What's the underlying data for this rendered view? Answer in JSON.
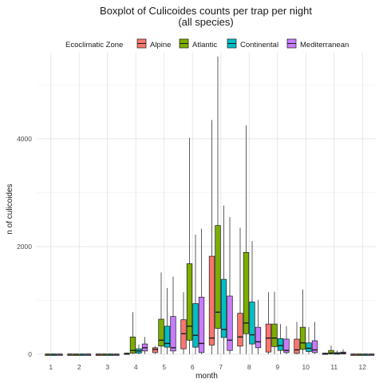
{
  "chart_data": {
    "type": "boxplot",
    "title": "Boxplot of Culicoides counts per trap per night",
    "subtitle": "(all species)",
    "xlabel": "month",
    "ylabel": "n of culicoides",
    "categories": [
      "1",
      "2",
      "3",
      "4",
      "5",
      "6",
      "7",
      "8",
      "9",
      "10",
      "11",
      "12"
    ],
    "y_ticks": [
      0,
      2000,
      4000
    ],
    "ylim": [
      -120,
      5600
    ],
    "grid": true,
    "legend": {
      "title": "Ecoclimatic Zone",
      "position": "top"
    },
    "series": [
      {
        "name": "Alpine",
        "color": "#F8766D",
        "boxes": [
          null,
          [
            0,
            0,
            0,
            0,
            0
          ],
          [
            0,
            0,
            0,
            0,
            0
          ],
          [
            0,
            0,
            5,
            20,
            30
          ],
          [
            0,
            30,
            90,
            120,
            150
          ],
          [
            0,
            100,
            380,
            640,
            1150
          ],
          [
            0,
            170,
            300,
            1820,
            4350
          ],
          [
            0,
            150,
            320,
            760,
            2350
          ],
          [
            0,
            40,
            300,
            560,
            1150
          ],
          [
            0,
            15,
            80,
            280,
            600
          ],
          [
            0,
            0,
            10,
            20,
            30
          ],
          [
            0,
            0,
            0,
            0,
            0
          ]
        ]
      },
      {
        "name": "Atlantic",
        "color": "#7CAE00",
        "boxes": [
          [
            0,
            0,
            0,
            0,
            0
          ],
          [
            0,
            0,
            0,
            0,
            0
          ],
          [
            0,
            0,
            0,
            0,
            0
          ],
          [
            0,
            20,
            70,
            320,
            780
          ],
          [
            0,
            150,
            260,
            650,
            1520
          ],
          [
            0,
            260,
            520,
            1680,
            4020
          ],
          [
            0,
            480,
            780,
            2390,
            5530
          ],
          [
            0,
            380,
            580,
            1890,
            4250
          ],
          [
            0,
            140,
            300,
            560,
            1160
          ],
          [
            0,
            90,
            210,
            500,
            1200
          ],
          [
            0,
            5,
            20,
            70,
            160
          ],
          [
            0,
            0,
            0,
            0,
            0
          ]
        ]
      },
      {
        "name": "Continental",
        "color": "#00BFC4",
        "boxes": [
          [
            0,
            0,
            0,
            0,
            0
          ],
          [
            0,
            0,
            0,
            0,
            0
          ],
          [
            0,
            0,
            0,
            0,
            0
          ],
          [
            0,
            20,
            60,
            100,
            180
          ],
          [
            0,
            130,
            200,
            520,
            1230
          ],
          [
            0,
            130,
            350,
            940,
            2220
          ],
          [
            0,
            310,
            460,
            1390,
            2760
          ],
          [
            0,
            190,
            360,
            970,
            2100
          ],
          [
            0,
            70,
            160,
            290,
            560
          ],
          [
            0,
            50,
            110,
            210,
            500
          ],
          [
            0,
            0,
            10,
            30,
            70
          ],
          [
            0,
            0,
            0,
            0,
            0
          ]
        ]
      },
      {
        "name": "Mediterranean",
        "color": "#C77CFF",
        "boxes": [
          [
            0,
            0,
            0,
            0,
            0
          ],
          [
            0,
            0,
            0,
            0,
            0
          ],
          [
            0,
            0,
            0,
            0,
            0
          ],
          [
            0,
            60,
            120,
            190,
            320
          ],
          [
            0,
            60,
            120,
            700,
            1440
          ],
          [
            0,
            30,
            200,
            1060,
            2330
          ],
          [
            0,
            70,
            260,
            1080,
            2550
          ],
          [
            0,
            120,
            230,
            500,
            1010
          ],
          [
            0,
            30,
            70,
            280,
            520
          ],
          [
            0,
            30,
            80,
            250,
            600
          ],
          [
            0,
            5,
            20,
            40,
            90
          ],
          [
            0,
            0,
            0,
            0,
            0
          ]
        ]
      }
    ]
  }
}
